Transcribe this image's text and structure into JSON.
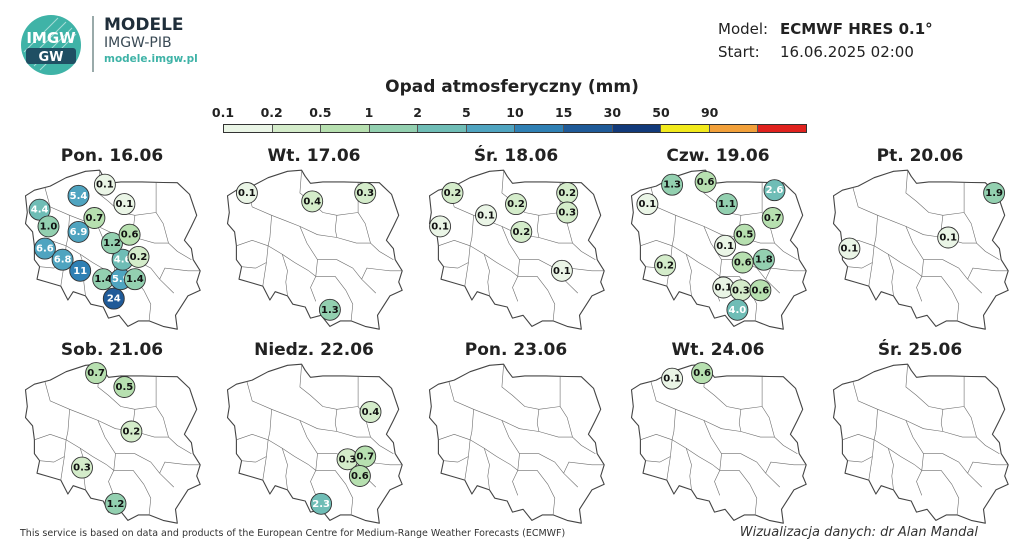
{
  "header": {
    "logo_text": "IMGW",
    "brand_title": "MODELE",
    "brand_subtitle": "IMGW-PIB",
    "brand_url": "modele.imgw.pl"
  },
  "model_info": {
    "model_label": "Model:",
    "model_value": "ECMWF HRES 0.1°",
    "start_label": "Start:",
    "start_value": "16.06.2025 02:00"
  },
  "legend": {
    "title": "Opad atmosferyczny (mm)",
    "ticks": [
      "0.1",
      "0.2",
      "0.5",
      "1",
      "2",
      "5",
      "10",
      "15",
      "30",
      "50",
      "90"
    ],
    "colors": [
      "#eaf5e6",
      "#d4ecca",
      "#b7e0b0",
      "#93d0b0",
      "#6fbdb6",
      "#4fa4c0",
      "#2f80b4",
      "#1f5a98",
      "#123a7a",
      "#f2ea1c",
      "#f2a03a",
      "#e0221e"
    ]
  },
  "colors": {
    "border": "#444444",
    "inner_border": "#6d6d6d",
    "text_light": "#ffffff",
    "text_dark": "#111111"
  },
  "days": [
    {
      "label": "Pon. 16.06",
      "points": [
        {
          "v": "5.4",
          "x": 17.2,
          "y": 53.9
        },
        {
          "v": "4.4",
          "x": 15.0,
          "y": 53.4
        },
        {
          "v": "1.0",
          "x": 15.5,
          "y": 52.8
        },
        {
          "v": "6.9",
          "x": 17.2,
          "y": 52.6
        },
        {
          "v": "6.6",
          "x": 15.3,
          "y": 52.0
        },
        {
          "v": "6.8",
          "x": 16.3,
          "y": 51.6
        },
        {
          "v": "11",
          "x": 17.3,
          "y": 51.2
        },
        {
          "v": "1.4",
          "x": 18.6,
          "y": 50.9
        },
        {
          "v": "24",
          "x": 19.2,
          "y": 50.2
        },
        {
          "v": "5.9",
          "x": 19.6,
          "y": 50.9
        },
        {
          "v": "1.4",
          "x": 20.4,
          "y": 50.9
        },
        {
          "v": "4.6",
          "x": 19.7,
          "y": 51.6
        },
        {
          "v": "0.2",
          "x": 20.6,
          "y": 51.7
        },
        {
          "v": "1.2",
          "x": 19.1,
          "y": 52.2
        },
        {
          "v": "0.6",
          "x": 20.1,
          "y": 52.5
        },
        {
          "v": "0.7",
          "x": 18.1,
          "y": 53.1
        },
        {
          "v": "0.1",
          "x": 18.7,
          "y": 54.3
        },
        {
          "v": "0.1",
          "x": 19.8,
          "y": 53.6
        }
      ]
    },
    {
      "label": "Wt. 17.06",
      "points": [
        {
          "v": "0.1",
          "x": 15.3,
          "y": 54.0
        },
        {
          "v": "0.4",
          "x": 19.0,
          "y": 53.7
        },
        {
          "v": "0.3",
          "x": 22.0,
          "y": 54.0
        },
        {
          "v": "1.3",
          "x": 20.0,
          "y": 49.8
        }
      ]
    },
    {
      "label": "Śr. 18.06",
      "points": [
        {
          "v": "0.2",
          "x": 15.5,
          "y": 54.0
        },
        {
          "v": "0.2",
          "x": 19.1,
          "y": 53.6
        },
        {
          "v": "0.2",
          "x": 22.0,
          "y": 54.0
        },
        {
          "v": "0.3",
          "x": 22.0,
          "y": 53.3
        },
        {
          "v": "0.1",
          "x": 17.4,
          "y": 53.2
        },
        {
          "v": "0.1",
          "x": 14.8,
          "y": 52.8
        },
        {
          "v": "0.2",
          "x": 19.4,
          "y": 52.6
        },
        {
          "v": "0.1",
          "x": 21.7,
          "y": 51.2
        }
      ]
    },
    {
      "label": "Czw. 19.06",
      "points": [
        {
          "v": "1.3",
          "x": 16.5,
          "y": 54.3
        },
        {
          "v": "0.6",
          "x": 18.4,
          "y": 54.4
        },
        {
          "v": "2.6",
          "x": 22.3,
          "y": 54.1
        },
        {
          "v": "0.1",
          "x": 15.1,
          "y": 53.6
        },
        {
          "v": "1.1",
          "x": 19.6,
          "y": 53.6
        },
        {
          "v": "0.7",
          "x": 22.2,
          "y": 53.1
        },
        {
          "v": "0.5",
          "x": 20.6,
          "y": 52.5
        },
        {
          "v": "0.1",
          "x": 19.5,
          "y": 52.1
        },
        {
          "v": "0.2",
          "x": 16.1,
          "y": 51.4
        },
        {
          "v": "0.6",
          "x": 20.5,
          "y": 51.5
        },
        {
          "v": "1.8",
          "x": 21.7,
          "y": 51.6
        },
        {
          "v": "0.1",
          "x": 19.4,
          "y": 50.6
        },
        {
          "v": "0.3",
          "x": 20.4,
          "y": 50.5
        },
        {
          "v": "0.6",
          "x": 21.5,
          "y": 50.5
        },
        {
          "v": "4.0",
          "x": 20.2,
          "y": 49.8
        }
      ]
    },
    {
      "label": "Pt. 20.06",
      "points": [
        {
          "v": "1.9",
          "x": 23.3,
          "y": 54.0
        },
        {
          "v": "0.1",
          "x": 20.7,
          "y": 52.4
        },
        {
          "v": "0.1",
          "x": 15.1,
          "y": 52.0
        }
      ]
    },
    {
      "label": "Sob. 21.06",
      "points": [
        {
          "v": "0.7",
          "x": 18.2,
          "y": 54.5
        },
        {
          "v": "0.5",
          "x": 19.8,
          "y": 54.0
        },
        {
          "v": "0.2",
          "x": 20.2,
          "y": 52.4
        },
        {
          "v": "0.3",
          "x": 17.4,
          "y": 51.1
        },
        {
          "v": "1.2",
          "x": 19.3,
          "y": 49.8
        }
      ]
    },
    {
      "label": "Niedz. 22.06",
      "points": [
        {
          "v": "0.4",
          "x": 22.3,
          "y": 53.1
        },
        {
          "v": "0.3",
          "x": 21.0,
          "y": 51.4
        },
        {
          "v": "0.7",
          "x": 22.0,
          "y": 51.5
        },
        {
          "v": "0.6",
          "x": 21.7,
          "y": 50.8
        },
        {
          "v": "2.3",
          "x": 19.5,
          "y": 49.8
        }
      ]
    },
    {
      "label": "Pon. 23.06",
      "points": []
    },
    {
      "label": "Wt. 24.06",
      "points": [
        {
          "v": "0.1",
          "x": 16.5,
          "y": 54.3
        },
        {
          "v": "0.6",
          "x": 18.2,
          "y": 54.5
        }
      ]
    },
    {
      "label": "Śr. 25.06",
      "points": []
    }
  ],
  "footer": {
    "left": "This service is based on data and products of the European Centre for Medium-Range Weather Forecasts (ECMWF)",
    "right": "Wizualizacja danych: dr Alan Mandal"
  }
}
